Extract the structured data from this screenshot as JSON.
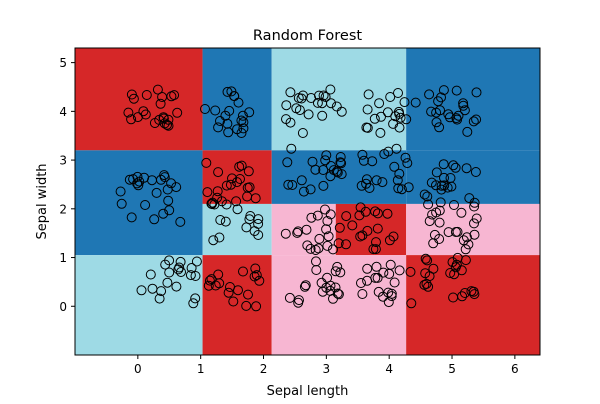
{
  "chart_data": {
    "type": "scatter",
    "title": "Random Forest",
    "xlabel": "Sepal length",
    "ylabel": "Sepal width",
    "xlim": [
      -1.0,
      6.4
    ],
    "ylim": [
      -1.0,
      5.3
    ],
    "xticks": [
      0,
      1,
      2,
      3,
      4,
      5,
      6
    ],
    "yticks": [
      0,
      1,
      2,
      3,
      4,
      5
    ],
    "grid": false,
    "region_colors": {
      "red": "#d62728",
      "blue": "#1f77b4",
      "cyan": "#9edae5",
      "pink": "#f7b6d2"
    },
    "regions": [
      {
        "class": "red",
        "x0": -1.0,
        "x1": 1.03,
        "y0": 3.2,
        "y1": 5.3
      },
      {
        "class": "blue",
        "x0": 1.03,
        "x1": 2.13,
        "y0": 3.2,
        "y1": 5.3
      },
      {
        "class": "cyan",
        "x0": 2.13,
        "x1": 4.27,
        "y0": 3.2,
        "y1": 5.3
      },
      {
        "class": "blue",
        "x0": 4.27,
        "x1": 6.4,
        "y0": 3.2,
        "y1": 5.3
      },
      {
        "class": "blue",
        "x0": -1.0,
        "x1": 1.03,
        "y0": 1.05,
        "y1": 3.2
      },
      {
        "class": "red",
        "x0": 1.03,
        "x1": 2.13,
        "y0": 2.1,
        "y1": 3.2
      },
      {
        "class": "cyan",
        "x0": 1.03,
        "x1": 2.13,
        "y0": 1.05,
        "y1": 2.1
      },
      {
        "class": "blue",
        "x0": 2.13,
        "x1": 4.27,
        "y0": 2.1,
        "y1": 3.2
      },
      {
        "class": "pink",
        "x0": 2.13,
        "x1": 3.15,
        "y0": 1.05,
        "y1": 2.1
      },
      {
        "class": "red",
        "x0": 3.15,
        "x1": 4.27,
        "y0": 1.05,
        "y1": 2.1
      },
      {
        "class": "blue",
        "x0": 4.27,
        "x1": 6.4,
        "y0": 2.1,
        "y1": 3.2
      },
      {
        "class": "pink",
        "x0": 4.27,
        "x1": 6.4,
        "y0": 1.05,
        "y1": 2.1
      },
      {
        "class": "cyan",
        "x0": -1.0,
        "x1": 1.03,
        "y0": -1.0,
        "y1": 1.05
      },
      {
        "class": "red",
        "x0": 1.03,
        "x1": 2.13,
        "y0": -1.0,
        "y1": 1.05
      },
      {
        "class": "pink",
        "x0": 2.13,
        "x1": 4.27,
        "y0": -1.0,
        "y1": 1.05
      },
      {
        "class": "red",
        "x0": 4.27,
        "x1": 6.4,
        "y0": -1.0,
        "y1": 1.05
      }
    ],
    "clusters": [
      {
        "cx": 0.2,
        "cy": 4.0,
        "spread": 0.45,
        "n": 22
      },
      {
        "cx": 1.5,
        "cy": 4.0,
        "spread": 0.45,
        "n": 20
      },
      {
        "cx": 2.8,
        "cy": 4.0,
        "spread": 0.45,
        "n": 22
      },
      {
        "cx": 4.0,
        "cy": 4.0,
        "spread": 0.45,
        "n": 20
      },
      {
        "cx": 5.0,
        "cy": 4.0,
        "spread": 0.45,
        "n": 22
      },
      {
        "cx": 0.2,
        "cy": 2.2,
        "spread": 0.5,
        "n": 24
      },
      {
        "cx": 1.5,
        "cy": 2.5,
        "spread": 0.45,
        "n": 20
      },
      {
        "cx": 2.8,
        "cy": 2.8,
        "spread": 0.45,
        "n": 22
      },
      {
        "cx": 4.0,
        "cy": 2.8,
        "spread": 0.45,
        "n": 20
      },
      {
        "cx": 5.0,
        "cy": 2.5,
        "spread": 0.45,
        "n": 22
      },
      {
        "cx": 1.5,
        "cy": 1.8,
        "spread": 0.45,
        "n": 16
      },
      {
        "cx": 2.8,
        "cy": 1.6,
        "spread": 0.45,
        "n": 20
      },
      {
        "cx": 3.7,
        "cy": 1.6,
        "spread": 0.45,
        "n": 18
      },
      {
        "cx": 5.0,
        "cy": 1.6,
        "spread": 0.45,
        "n": 20
      },
      {
        "cx": 0.5,
        "cy": 0.5,
        "spread": 0.45,
        "n": 20
      },
      {
        "cx": 1.5,
        "cy": 0.4,
        "spread": 0.45,
        "n": 18
      },
      {
        "cx": 2.8,
        "cy": 0.5,
        "spread": 0.45,
        "n": 20
      },
      {
        "cx": 4.0,
        "cy": 0.5,
        "spread": 0.45,
        "n": 20
      },
      {
        "cx": 5.0,
        "cy": 0.6,
        "spread": 0.45,
        "n": 22
      }
    ],
    "marker": {
      "edge_color": "#000000",
      "face": "none"
    }
  }
}
